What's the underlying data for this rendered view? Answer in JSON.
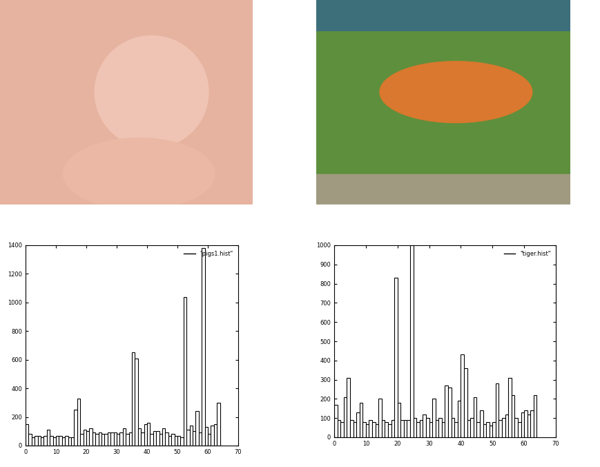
{
  "chart_data": [
    {
      "type": "bar",
      "x": [
        0,
        1,
        2,
        3,
        4,
        5,
        6,
        7,
        8,
        9,
        10,
        11,
        12,
        13,
        14,
        15,
        16,
        17,
        18,
        19,
        20,
        21,
        22,
        23,
        24,
        25,
        26,
        27,
        28,
        29,
        30,
        31,
        32,
        33,
        34,
        35,
        36,
        37,
        38,
        39,
        40,
        41,
        42,
        43,
        44,
        45,
        46,
        47,
        48,
        49,
        50,
        51,
        52,
        53,
        54,
        55,
        56,
        57,
        58,
        59,
        60,
        61,
        62,
        63
      ],
      "series": [
        {
          "name": "\"pigs1.hist\"",
          "color": "#000000",
          "values": [
            150,
            80,
            60,
            70,
            70,
            60,
            70,
            110,
            70,
            60,
            70,
            70,
            60,
            70,
            60,
            60,
            250,
            330,
            80,
            110,
            100,
            120,
            90,
            80,
            90,
            80,
            80,
            90,
            90,
            90,
            80,
            90,
            120,
            80,
            90,
            650,
            610,
            120,
            90,
            150,
            160,
            80,
            100,
            100,
            80,
            120,
            90,
            70,
            80,
            70,
            70,
            60,
            1040,
            110,
            140,
            100,
            240,
            90,
            1380,
            130,
            80,
            140,
            150,
            300
          ]
        }
      ],
      "xlim": [
        0,
        70
      ],
      "xticks": [
        0,
        10,
        20,
        30,
        40,
        50,
        60,
        70
      ],
      "ylim": [
        0,
        1400
      ],
      "yticks": [
        0,
        200,
        400,
        600,
        800,
        1000,
        1200,
        1400
      ],
      "legend": "upper right"
    },
    {
      "type": "bar",
      "x": [
        0,
        1,
        2,
        3,
        4,
        5,
        6,
        7,
        8,
        9,
        10,
        11,
        12,
        13,
        14,
        15,
        16,
        17,
        18,
        19,
        20,
        21,
        22,
        23,
        24,
        25,
        26,
        27,
        28,
        29,
        30,
        31,
        32,
        33,
        34,
        35,
        36,
        37,
        38,
        39,
        40,
        41,
        42,
        43,
        44,
        45,
        46,
        47,
        48,
        49,
        50,
        51,
        52,
        53,
        54,
        55,
        56,
        57,
        58,
        59,
        60,
        61,
        62,
        63
      ],
      "series": [
        {
          "name": "\"tiger.hist\"",
          "color": "#000000",
          "values": [
            170,
            90,
            80,
            210,
            310,
            90,
            80,
            130,
            180,
            80,
            70,
            90,
            80,
            70,
            200,
            90,
            80,
            70,
            90,
            830,
            180,
            90,
            90,
            90,
            1000,
            100,
            80,
            90,
            120,
            100,
            80,
            200,
            90,
            100,
            80,
            270,
            260,
            100,
            80,
            190,
            430,
            360,
            90,
            100,
            210,
            80,
            140,
            70,
            80,
            60,
            80,
            280,
            90,
            100,
            120,
            310,
            220,
            100,
            80,
            130,
            140,
            120,
            140,
            220
          ]
        }
      ],
      "xlim": [
        0,
        70
      ],
      "xticks": [
        0,
        10,
        20,
        30,
        40,
        50,
        60,
        70
      ],
      "ylim": [
        0,
        1000
      ],
      "yticks": [
        0,
        100,
        200,
        300,
        400,
        500,
        600,
        700,
        800,
        900,
        1000
      ],
      "legend": "upper right"
    }
  ]
}
